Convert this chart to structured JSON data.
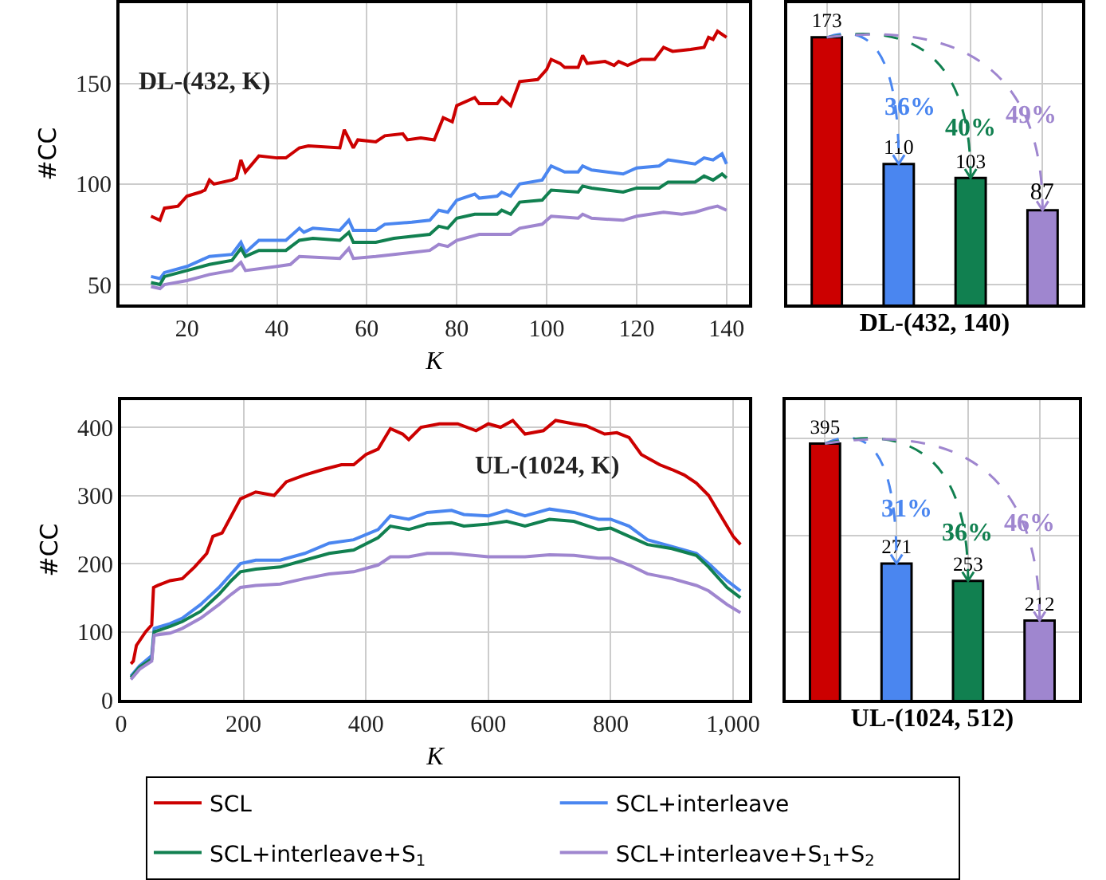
{
  "chart_data": [
    {
      "type": "line",
      "xlabel": "K",
      "ylabel": "#CC",
      "xlim": [
        5,
        145
      ],
      "ylim": [
        40,
        190
      ],
      "xticks": [
        20,
        40,
        60,
        80,
        100,
        120,
        140
      ],
      "yticks": [
        50,
        100,
        150
      ],
      "grid": true,
      "legend": "bottom",
      "annotations": [
        "DL-(432, K)"
      ],
      "series": [
        {
          "name": "SCL",
          "color": "#cc0000",
          "x": [
            12,
            14,
            15,
            18,
            20,
            23,
            24,
            25,
            26,
            30,
            31,
            32,
            33,
            36,
            40,
            42,
            45,
            47,
            54,
            55,
            57,
            58,
            62,
            64,
            68,
            69,
            72,
            75,
            77,
            79,
            80,
            84,
            85,
            89,
            90,
            92,
            94,
            98,
            100,
            101,
            103,
            104,
            107,
            108,
            109,
            113,
            115,
            116,
            118,
            121,
            124,
            126,
            128,
            132,
            135,
            136,
            137,
            138,
            140
          ],
          "values": [
            84,
            82,
            88,
            89,
            94,
            96,
            97,
            102,
            100,
            102,
            103,
            112,
            106,
            114,
            113,
            113,
            118,
            119,
            118,
            127,
            118,
            122,
            121,
            124,
            125,
            122,
            123,
            122,
            133,
            131,
            139,
            143,
            140,
            140,
            143,
            139,
            151,
            152,
            157,
            162,
            160,
            158,
            158,
            164,
            160,
            161,
            159,
            161,
            159,
            162,
            162,
            168,
            166,
            167,
            168,
            173,
            172,
            176,
            173
          ]
        },
        {
          "name": "SCL+interleave",
          "color": "#4a86f0",
          "x": [
            12,
            14,
            15,
            20,
            25,
            30,
            32,
            33,
            36,
            42,
            45,
            46,
            48,
            54,
            56,
            57,
            62,
            64,
            70,
            74,
            76,
            78,
            80,
            84,
            85,
            89,
            90,
            92,
            94,
            99,
            101,
            104,
            107,
            108,
            110,
            117,
            120,
            125,
            127,
            133,
            135,
            137,
            139,
            140
          ],
          "values": [
            54,
            53,
            56,
            59,
            64,
            65,
            71,
            66,
            72,
            72,
            78,
            76,
            78,
            77,
            82,
            77,
            77,
            80,
            81,
            82,
            87,
            86,
            92,
            95,
            93,
            94,
            96,
            94,
            100,
            102,
            109,
            106,
            106,
            109,
            107,
            105,
            108,
            109,
            112,
            110,
            113,
            112,
            115,
            110
          ]
        },
        {
          "name": "SCL+interleave+S$_{1}$",
          "color": "#118050",
          "x": [
            12,
            14,
            15,
            20,
            25,
            30,
            32,
            33,
            36,
            42,
            45,
            48,
            54,
            56,
            57,
            62,
            66,
            70,
            74,
            76,
            78,
            80,
            84,
            89,
            90,
            92,
            94,
            99,
            101,
            107,
            108,
            110,
            117,
            120,
            125,
            127,
            133,
            135,
            137,
            139,
            140
          ],
          "values": [
            51,
            50,
            54,
            57,
            60,
            62,
            68,
            64,
            67,
            67,
            72,
            73,
            72,
            76,
            71,
            71,
            73,
            74,
            75,
            79,
            78,
            83,
            85,
            85,
            87,
            85,
            91,
            92,
            97,
            96,
            99,
            98,
            96,
            98,
            98,
            101,
            101,
            104,
            102,
            105,
            103
          ]
        },
        {
          "name": "SCL+interleave+S$_{1}$+S$_{2}$",
          "color": "#9f86cf",
          "x": [
            12,
            14,
            15,
            20,
            25,
            30,
            32,
            33,
            40,
            43,
            45,
            54,
            56,
            57,
            62,
            70,
            74,
            76,
            78,
            80,
            85,
            90,
            92,
            94,
            99,
            101,
            107,
            108,
            110,
            117,
            120,
            126,
            130,
            133,
            136,
            138,
            140
          ],
          "values": [
            49,
            48,
            50,
            52,
            55,
            57,
            61,
            57,
            59,
            60,
            64,
            63,
            68,
            63,
            64,
            66,
            67,
            70,
            69,
            72,
            75,
            75,
            75,
            78,
            80,
            84,
            83,
            85,
            83,
            82,
            84,
            86,
            85,
            86,
            88,
            89,
            87
          ]
        }
      ]
    },
    {
      "type": "bar",
      "xlabel": "DL-(432, 140)",
      "categories": [
        null,
        null,
        null,
        null
      ],
      "values": [
        173,
        110,
        103,
        87
      ],
      "colors": [
        "#cc0000",
        "#4a86f0",
        "#118050",
        "#9f86cf"
      ],
      "ylim": [
        40,
        190
      ],
      "yticks": [
        {
          "value": 50,
          "label": null
        },
        {
          "value": 100,
          "label": null
        },
        {
          "value": 150,
          "label": null
        }
      ],
      "grid": true,
      "tick_labels": false,
      "data_labels": true,
      "annotations": [
        "36%",
        "40%",
        "49%"
      ]
    },
    {
      "type": "line",
      "xlabel": "K",
      "ylabel": "#CC",
      "xlim": [
        0,
        1026
      ],
      "ylim": [
        0,
        440
      ],
      "xticks": [
        0,
        200,
        400,
        600,
        800,
        {
          "value": 1000,
          "label": "1,000"
        }
      ],
      "yticks": [
        0,
        100,
        200,
        300,
        400
      ],
      "grid": true,
      "legend": "bottom",
      "annotations": [
        "UL-(1024, K)"
      ],
      "series": [
        {
          "name": "SCL",
          "color": "#cc0000",
          "x": [
            16,
            20,
            25,
            40,
            50,
            53,
            60,
            80,
            100,
            120,
            140,
            150,
            165,
            180,
            195,
            220,
            250,
            270,
            300,
            330,
            360,
            380,
            400,
            420,
            440,
            460,
            470,
            490,
            520,
            550,
            580,
            600,
            620,
            640,
            660,
            690,
            710,
            740,
            760,
            790,
            810,
            830,
            850,
            880,
            900,
            920,
            940,
            960,
            980,
            1000,
            1012
          ],
          "values": [
            53,
            57,
            80,
            100,
            110,
            165,
            168,
            175,
            178,
            195,
            215,
            240,
            245,
            270,
            295,
            305,
            300,
            320,
            330,
            338,
            345,
            345,
            360,
            368,
            398,
            390,
            382,
            400,
            405,
            405,
            395,
            405,
            400,
            410,
            390,
            395,
            410,
            405,
            402,
            390,
            392,
            385,
            360,
            345,
            338,
            330,
            318,
            300,
            270,
            240,
            228
          ]
        },
        {
          "name": "SCL+interleave",
          "color": "#4a86f0",
          "x": [
            16,
            30,
            50,
            54,
            80,
            100,
            130,
            160,
            180,
            195,
            220,
            260,
            300,
            340,
            380,
            420,
            440,
            470,
            500,
            540,
            560,
            600,
            630,
            660,
            700,
            740,
            780,
            800,
            830,
            860,
            900,
            940,
            960,
            990,
            1012
          ],
          "values": [
            35,
            50,
            65,
            105,
            112,
            120,
            140,
            165,
            185,
            200,
            205,
            205,
            215,
            230,
            235,
            250,
            270,
            265,
            275,
            278,
            272,
            270,
            278,
            270,
            280,
            275,
            265,
            265,
            255,
            235,
            225,
            215,
            200,
            175,
            160
          ]
        },
        {
          "name": "SCL+interleave+S$_{1}$",
          "color": "#118050",
          "x": [
            16,
            30,
            50,
            54,
            80,
            100,
            130,
            160,
            180,
            195,
            220,
            260,
            300,
            340,
            380,
            420,
            440,
            470,
            500,
            540,
            560,
            600,
            630,
            660,
            700,
            740,
            780,
            800,
            830,
            860,
            900,
            940,
            960,
            990,
            1012
          ],
          "values": [
            33,
            48,
            60,
            100,
            108,
            115,
            130,
            155,
            175,
            188,
            192,
            195,
            205,
            215,
            220,
            238,
            255,
            250,
            258,
            260,
            255,
            258,
            262,
            255,
            265,
            262,
            250,
            252,
            240,
            228,
            222,
            212,
            195,
            165,
            150
          ]
        },
        {
          "name": "SCL+interleave+S$_{1}$+S$_{2}$",
          "color": "#9f86cf",
          "x": [
            16,
            30,
            50,
            54,
            80,
            100,
            130,
            160,
            180,
            195,
            220,
            260,
            300,
            340,
            380,
            420,
            440,
            470,
            500,
            540,
            600,
            660,
            700,
            740,
            780,
            800,
            830,
            860,
            900,
            940,
            960,
            990,
            1012
          ],
          "values": [
            30,
            45,
            57,
            95,
            98,
            105,
            120,
            140,
            155,
            165,
            168,
            170,
            178,
            185,
            188,
            198,
            210,
            210,
            215,
            215,
            210,
            210,
            213,
            212,
            208,
            208,
            198,
            185,
            178,
            168,
            160,
            140,
            128
          ]
        }
      ]
    },
    {
      "type": "bar",
      "xlabel": "UL-(1024, 512)",
      "categories": [
        null,
        null,
        null,
        null
      ],
      "values": [
        395,
        271,
        253,
        212
      ],
      "colors": [
        "#cc0000",
        "#4a86f0",
        "#118050",
        "#9f86cf"
      ],
      "ylim": [
        130,
        440
      ],
      "yticks": [
        {
          "value": 200,
          "label": null
        },
        {
          "value": 300,
          "label": null
        },
        {
          "value": 400,
          "label": null
        }
      ],
      "grid": true,
      "tick_labels": false,
      "data_labels": true,
      "annotations": [
        "31%",
        "36%",
        "46%"
      ]
    }
  ]
}
